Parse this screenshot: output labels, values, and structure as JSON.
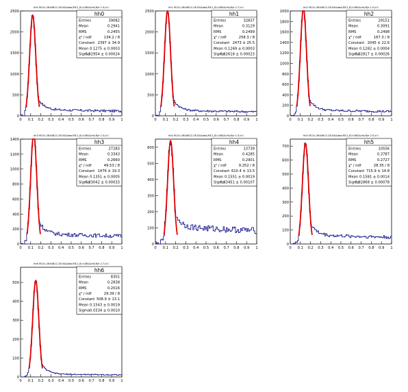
{
  "chart_data": [
    {
      "type": "histogram",
      "id": "hh0",
      "title": "hh0",
      "header": "hh0 M12c-2844812-28.0&&abs(M12_8)<28&&chi(8)e 1.0)>1",
      "ylim": [
        0,
        2500
      ],
      "yticks": [
        0,
        500,
        1000,
        1500,
        2000,
        2500
      ],
      "xlim": [
        0,
        1
      ],
      "xticks": [
        "0",
        "0.1",
        "0.2",
        "0.3",
        "0.4",
        "0.5",
        "0.6",
        "0.7",
        "0.8",
        "0.9",
        "1"
      ],
      "peak": 2400,
      "peak_x": 0.12,
      "tail": 150,
      "stats": [
        {
          "label": "Entries",
          "value": "39082"
        },
        {
          "label": "Mean",
          "value": "0.2941"
        },
        {
          "label": "RMS",
          "value": "0.2455"
        },
        {
          "label": "χ² / ndf",
          "value": "134.2 / 8"
        },
        {
          "label": "Constant",
          "value": "2397 ± 34.9"
        },
        {
          "label": "Mean",
          "value": "0.1275 ± 0.0003"
        },
        {
          "label": "Sigma",
          "value": "0.02954 ± 0.00024"
        }
      ]
    },
    {
      "type": "histogram",
      "id": "hh1",
      "title": "hh1",
      "header": "hh1 M12c-2844812-28.0&&abs(M12_8)<28&&chi(8)e 2.7)>1",
      "ylim": [
        0,
        2500
      ],
      "yticks": [
        0,
        500,
        1000,
        1500,
        2000,
        2500
      ],
      "xlim": [
        0,
        1
      ],
      "xticks": [
        "0",
        "0.1",
        "0.2",
        "0.3",
        "0.4",
        "0.5",
        "0.6",
        "0.7",
        "0.8",
        "0.9",
        "1"
      ],
      "peak": 2500,
      "peak_x": 0.12,
      "tail": 130,
      "stats": [
        {
          "label": "Entries",
          "value": "32837"
        },
        {
          "label": "Mean",
          "value": "0.3129"
        },
        {
          "label": "RMS",
          "value": "0.2499"
        },
        {
          "label": "χ² / ndf",
          "value": "258.3 / 8"
        },
        {
          "label": "Constant",
          "value": "2473 ± 25.5"
        },
        {
          "label": "Mean",
          "value": "0.1269 ± 0.0003"
        },
        {
          "label": "Sigma",
          "value": "0.02618 ± 0.00023"
        }
      ]
    },
    {
      "type": "histogram",
      "id": "hh2",
      "title": "hh2",
      "header": "hh2 M12c-2844812-28.0&&abs(M12_8)<28&&chi(8)e 1.0)>1",
      "ylim": [
        0,
        2000
      ],
      "yticks": [
        0,
        200,
        400,
        600,
        800,
        1000,
        1200,
        1400,
        1600,
        1800,
        2000
      ],
      "xlim": [
        0,
        1
      ],
      "xticks": [
        "0",
        "0.1",
        "0.2",
        "0.3",
        "0.4",
        "0.5",
        "0.6",
        "0.7",
        "0.8",
        "0.9",
        "1"
      ],
      "peak": 2050,
      "peak_x": 0.13,
      "tail": 110,
      "stats": [
        {
          "label": "Entries",
          "value": "29151"
        },
        {
          "label": "Mean",
          "value": "0.3091"
        },
        {
          "label": "RMS",
          "value": "0.2498"
        },
        {
          "label": "χ² / ndf",
          "value": "167.3 / 8"
        },
        {
          "label": "Constant",
          "value": "2045 ± 22.6"
        },
        {
          "label": "Mean",
          "value": "0.1282 ± 0.0004"
        },
        {
          "label": "Sigma",
          "value": "0.02817 ± 0.00026"
        }
      ]
    },
    {
      "type": "histogram",
      "id": "hh3",
      "title": "hh3",
      "header": "hh3 M12c-2844812-28.0&&abs(M12_8)<28&&chi(8)e 1.0)>1",
      "ylim": [
        0,
        1400
      ],
      "yticks": [
        0,
        200,
        400,
        600,
        800,
        1000,
        1200,
        1400
      ],
      "xlim": [
        0,
        1
      ],
      "xticks": [
        "0",
        "0.1",
        "0.2",
        "0.3",
        "0.4",
        "0.5",
        "0.6",
        "0.7",
        "0.8",
        "0.9",
        "1"
      ],
      "peak": 1480,
      "peak_x": 0.13,
      "tail": 140,
      "stats": [
        {
          "label": "Entries",
          "value": "27283"
        },
        {
          "label": "Mean",
          "value": "0.3343"
        },
        {
          "label": "RMS",
          "value": "0.2660"
        },
        {
          "label": "χ² / ndf",
          "value": "49.53 / 8"
        },
        {
          "label": "Constant",
          "value": "1476 ± 19.3"
        },
        {
          "label": "Mean",
          "value": "0.1351 ± 0.0005"
        },
        {
          "label": "Sigma",
          "value": "0.03042 ± 0.00033"
        }
      ]
    },
    {
      "type": "histogram",
      "id": "hh4",
      "title": "hh4",
      "header": "hh4 M12c-2844812-28.0&&abs(M12_8)<28&&chi(8)e 1.0)>1",
      "ylim": [
        0,
        650
      ],
      "yticks": [
        0,
        100,
        200,
        300,
        400,
        500,
        600
      ],
      "xlim": [
        0,
        1
      ],
      "xticks": [
        "0",
        "0.1",
        "0.2",
        "0.3",
        "0.4",
        "0.5",
        "0.6",
        "0.7",
        "0.8",
        "0.9",
        "1"
      ],
      "peak": 640,
      "peak_x": 0.15,
      "tail": 110,
      "stats": [
        {
          "label": "Entries",
          "value": "13739"
        },
        {
          "label": "Mean",
          "value": "0.4285"
        },
        {
          "label": "RMS",
          "value": "0.2901"
        },
        {
          "label": "χ² / ndf",
          "value": "9.252 / 8"
        },
        {
          "label": "Constant",
          "value": "610.4 ± 13.5"
        },
        {
          "label": "Mean",
          "value": "0.1551 ± 0.0019"
        },
        {
          "label": "Sigma",
          "value": "0.03451 ± 0.00107"
        }
      ]
    },
    {
      "type": "histogram",
      "id": "hh5",
      "title": "hh5",
      "header": "hh5 M12c-2844812-28.0&&abs(M12_8)<28&&chi(8)e 2.0)>1",
      "ylim": [
        0,
        750
      ],
      "yticks": [
        0,
        100,
        200,
        300,
        400,
        500,
        600,
        700
      ],
      "xlim": [
        0,
        1
      ],
      "xticks": [
        "0",
        "0.1",
        "0.2",
        "0.3",
        "0.4",
        "0.5",
        "0.6",
        "0.7",
        "0.8",
        "0.9",
        "1"
      ],
      "peak": 720,
      "peak_x": 0.15,
      "tail": 65,
      "stats": [
        {
          "label": "Entries",
          "value": "10556"
        },
        {
          "label": "Mean",
          "value": "0.3787"
        },
        {
          "label": "RMS",
          "value": "0.2727"
        },
        {
          "label": "χ² / ndf",
          "value": "28.35 / 8"
        },
        {
          "label": "Constant",
          "value": "715.9 ± 14.8"
        },
        {
          "label": "Mean",
          "value": "0.1581 ± 0.0014"
        },
        {
          "label": "Sigma",
          "value": "0.02868 ± 0.00078"
        }
      ]
    },
    {
      "type": "histogram",
      "id": "hh6",
      "title": "hh6",
      "header": "hh6 M12c-2844812-28.0&&abs(M12_8)<28&&chi(8)e 2.7)>1",
      "ylim": [
        0,
        580
      ],
      "yticks": [
        0,
        100,
        200,
        300,
        400,
        500
      ],
      "xlim": [
        0,
        1
      ],
      "xticks": [
        "0",
        "0.1",
        "0.2",
        "0.3",
        "0.4",
        "0.5",
        "0.6",
        "0.7",
        "0.8",
        "0.9",
        "1"
      ],
      "peak": 510,
      "peak_x": 0.15,
      "tail": 15,
      "stats": [
        {
          "label": "Entries",
          "value": "8301"
        },
        {
          "label": "Mean",
          "value": "0.2838"
        },
        {
          "label": "RMS",
          "value": "0.2016"
        },
        {
          "label": "χ² / ndf",
          "value": "29.39 / 8"
        },
        {
          "label": "Constant",
          "value": "508.9 ± 13.1"
        },
        {
          "label": "Mean",
          "value": "0.1543 ± 0.0019"
        },
        {
          "label": "Sigma",
          "value": "0.0334 ± 0.0010"
        }
      ]
    }
  ],
  "colors": {
    "histogram": "#1a1a8c",
    "fit": "#e00000",
    "axis": "#000000",
    "background": "#ffffff"
  }
}
